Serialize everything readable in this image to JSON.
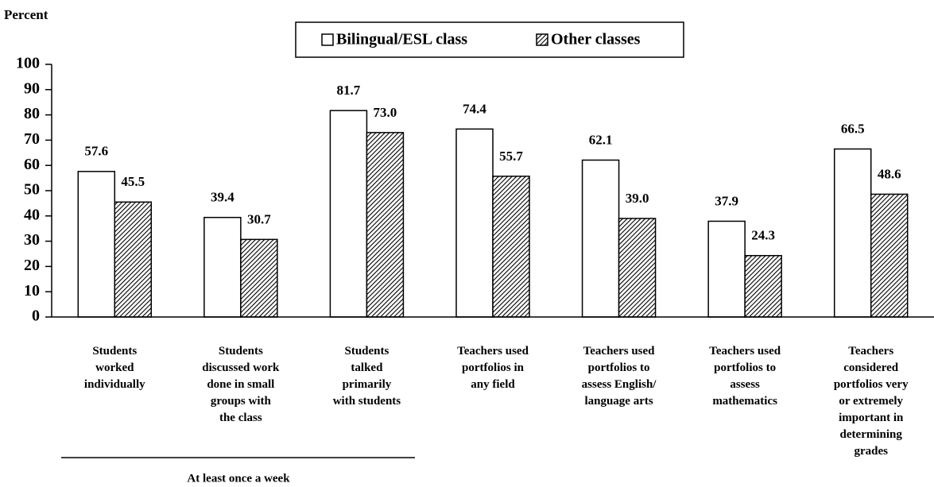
{
  "chart_data": {
    "type": "bar",
    "ylabel": "Percent",
    "categories": [
      [
        "Students",
        "worked",
        "individually"
      ],
      [
        "Students",
        "discussed work",
        "done in small",
        "groups with",
        "the class"
      ],
      [
        "Students",
        "talked",
        "primarily",
        "with students"
      ],
      [
        "Teachers used",
        "portfolios in",
        "any field"
      ],
      [
        "Teachers used",
        "portfolios to",
        "assess English/",
        "language arts"
      ],
      [
        "Teachers used",
        "portfolios to",
        "assess",
        "mathematics"
      ],
      [
        "Teachers",
        "considered",
        "portfolios very",
        "or extremely",
        "important in",
        "determining",
        "grades"
      ]
    ],
    "series": [
      {
        "name": "Bilingual/ESL class",
        "color": "#ffffff",
        "values": [
          57.6,
          39.4,
          81.7,
          74.4,
          62.1,
          37.9,
          66.5
        ],
        "value_labels": [
          "57.6",
          "39.4",
          "81.7",
          "74.4",
          "62.1",
          "37.9",
          "66.5"
        ]
      },
      {
        "name": "Other classes",
        "color": "hatched",
        "values": [
          45.5,
          30.7,
          73.0,
          55.7,
          39.0,
          24.3,
          48.6
        ],
        "value_labels": [
          "45.5",
          "30.7",
          "73.0",
          "55.7",
          "39.0",
          "24.3",
          "48.6"
        ]
      }
    ],
    "ylim": [
      0,
      100
    ],
    "yticks": [
      0,
      10,
      20,
      30,
      40,
      50,
      60,
      70,
      80,
      90,
      100
    ],
    "annotation": "At least once a week"
  }
}
